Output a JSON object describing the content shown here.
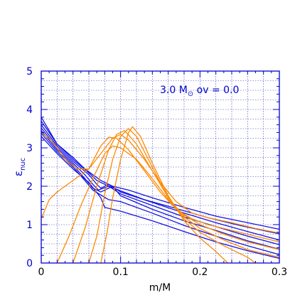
{
  "chart_data": {
    "type": "line",
    "annotation": "3.0 M⊙ ov = 0.0",
    "xlabel": "m/M",
    "ylabel": "εnuc",
    "xlim": [
      0,
      0.3
    ],
    "ylim": [
      0,
      5
    ],
    "grid": true,
    "xticks": [
      "0",
      "0.1",
      "0.2",
      "0.3"
    ],
    "yticks": [
      "0",
      "1",
      "2",
      "3",
      "4",
      "5"
    ],
    "colors": {
      "axes": "#0000cc",
      "grid": "#3333cc",
      "blue": "#1515e0",
      "orange": "#ff8a00"
    },
    "series": [
      {
        "color": "blue",
        "points": [
          [
            0,
            3.8
          ],
          [
            0.02,
            3.1
          ],
          [
            0.04,
            2.75
          ],
          [
            0.055,
            2.45
          ],
          [
            0.065,
            2.3
          ],
          [
            0.075,
            2.15
          ],
          [
            0.09,
            2.0
          ],
          [
            0.11,
            1.9
          ],
          [
            0.14,
            1.7
          ],
          [
            0.18,
            1.45
          ],
          [
            0.22,
            1.22
          ],
          [
            0.26,
            1.05
          ],
          [
            0.3,
            0.88
          ]
        ]
      },
      {
        "color": "blue",
        "points": [
          [
            0,
            3.7
          ],
          [
            0.02,
            3.1
          ],
          [
            0.04,
            2.7
          ],
          [
            0.06,
            2.35
          ],
          [
            0.07,
            2.15
          ],
          [
            0.08,
            2.05
          ],
          [
            0.1,
            1.88
          ],
          [
            0.13,
            1.65
          ],
          [
            0.17,
            1.42
          ],
          [
            0.21,
            1.18
          ],
          [
            0.25,
            0.98
          ],
          [
            0.3,
            0.76
          ]
        ]
      },
      {
        "color": "blue",
        "points": [
          [
            0,
            3.6
          ],
          [
            0.02,
            3.05
          ],
          [
            0.04,
            2.65
          ],
          [
            0.06,
            2.3
          ],
          [
            0.07,
            2.05
          ],
          [
            0.075,
            1.95
          ],
          [
            0.085,
            2.05
          ],
          [
            0.1,
            1.85
          ],
          [
            0.14,
            1.58
          ],
          [
            0.18,
            1.3
          ],
          [
            0.22,
            1.05
          ],
          [
            0.26,
            0.82
          ],
          [
            0.3,
            0.6
          ]
        ]
      },
      {
        "color": "blue",
        "points": [
          [
            0,
            3.52
          ],
          [
            0.02,
            3.0
          ],
          [
            0.04,
            2.6
          ],
          [
            0.055,
            2.3
          ],
          [
            0.065,
            2.05
          ],
          [
            0.072,
            1.9
          ],
          [
            0.085,
            2.0
          ],
          [
            0.1,
            1.8
          ],
          [
            0.14,
            1.5
          ],
          [
            0.18,
            1.2
          ],
          [
            0.22,
            0.95
          ],
          [
            0.26,
            0.7
          ],
          [
            0.3,
            0.48
          ]
        ]
      },
      {
        "color": "blue",
        "points": [
          [
            0,
            3.45
          ],
          [
            0.02,
            2.95
          ],
          [
            0.04,
            2.55
          ],
          [
            0.055,
            2.2
          ],
          [
            0.065,
            1.95
          ],
          [
            0.075,
            1.85
          ],
          [
            0.09,
            2.0
          ],
          [
            0.1,
            1.75
          ],
          [
            0.14,
            1.4
          ],
          [
            0.18,
            1.1
          ],
          [
            0.22,
            0.85
          ],
          [
            0.26,
            0.58
          ],
          [
            0.3,
            0.36
          ]
        ]
      },
      {
        "color": "blue",
        "points": [
          [
            0,
            3.38
          ],
          [
            0.02,
            2.9
          ],
          [
            0.04,
            2.5
          ],
          [
            0.055,
            2.15
          ],
          [
            0.065,
            1.9
          ],
          [
            0.085,
            1.65
          ],
          [
            0.1,
            1.6
          ],
          [
            0.14,
            1.3
          ],
          [
            0.18,
            0.98
          ],
          [
            0.22,
            0.7
          ],
          [
            0.26,
            0.45
          ],
          [
            0.3,
            0.22
          ]
        ]
      },
      {
        "color": "blue",
        "points": [
          [
            0,
            3.3
          ],
          [
            0.02,
            2.85
          ],
          [
            0.04,
            2.45
          ],
          [
            0.06,
            2.1
          ],
          [
            0.075,
            1.7
          ],
          [
            0.08,
            1.45
          ],
          [
            0.1,
            1.35
          ],
          [
            0.14,
            1.1
          ],
          [
            0.18,
            0.82
          ],
          [
            0.22,
            0.55
          ],
          [
            0.26,
            0.32
          ],
          [
            0.3,
            0.12
          ]
        ]
      },
      {
        "color": "orange",
        "points": [
          [
            0,
            3.4
          ],
          [
            0.015,
            3.15
          ],
          [
            0.03,
            2.7
          ],
          [
            0.045,
            2.45
          ],
          [
            0.06,
            2.45
          ],
          [
            0.075,
            2.85
          ],
          [
            0.09,
            3.25
          ],
          [
            0.1,
            3.35
          ],
          [
            0.11,
            3.2
          ],
          [
            0.13,
            2.7
          ],
          [
            0.15,
            2.1
          ],
          [
            0.17,
            1.6
          ],
          [
            0.19,
            1.3
          ],
          [
            0.21,
            1.18
          ],
          [
            0.24,
            1.05
          ],
          [
            0.27,
            0.9
          ],
          [
            0.3,
            0.78
          ]
        ]
      },
      {
        "color": "orange",
        "points": [
          [
            0,
            1.15
          ],
          [
            0.01,
            1.65
          ],
          [
            0.02,
            1.85
          ],
          [
            0.04,
            2.15
          ],
          [
            0.06,
            2.45
          ],
          [
            0.075,
            3.05
          ],
          [
            0.085,
            3.28
          ],
          [
            0.095,
            3.25
          ],
          [
            0.11,
            2.95
          ],
          [
            0.13,
            2.4
          ],
          [
            0.15,
            1.85
          ],
          [
            0.17,
            1.4
          ],
          [
            0.19,
            1.15
          ],
          [
            0.21,
            1.0
          ],
          [
            0.24,
            0.85
          ],
          [
            0.27,
            0.7
          ],
          [
            0.3,
            0.55
          ]
        ]
      },
      {
        "color": "orange",
        "points": [
          [
            0.02,
            0
          ],
          [
            0.035,
            0.7
          ],
          [
            0.05,
            1.5
          ],
          [
            0.065,
            2.2
          ],
          [
            0.08,
            2.85
          ],
          [
            0.09,
            3.05
          ],
          [
            0.1,
            3.0
          ],
          [
            0.12,
            2.7
          ],
          [
            0.14,
            2.2
          ],
          [
            0.16,
            1.65
          ],
          [
            0.18,
            1.25
          ],
          [
            0.2,
            1.0
          ],
          [
            0.23,
            0.75
          ],
          [
            0.26,
            0.55
          ],
          [
            0.3,
            0.35
          ]
        ]
      },
      {
        "color": "orange",
        "points": [
          [
            0.04,
            0
          ],
          [
            0.055,
            0.9
          ],
          [
            0.07,
            2.0
          ],
          [
            0.085,
            2.95
          ],
          [
            0.095,
            3.35
          ],
          [
            0.105,
            3.45
          ],
          [
            0.12,
            3.1
          ],
          [
            0.14,
            2.4
          ],
          [
            0.16,
            1.7
          ],
          [
            0.18,
            1.2
          ],
          [
            0.2,
            0.9
          ],
          [
            0.23,
            0.6
          ],
          [
            0.26,
            0.35
          ],
          [
            0.3,
            0.15
          ]
        ]
      },
      {
        "color": "orange",
        "points": [
          [
            0.06,
            0
          ],
          [
            0.07,
            0.7
          ],
          [
            0.08,
            1.8
          ],
          [
            0.09,
            2.7
          ],
          [
            0.1,
            3.3
          ],
          [
            0.11,
            3.5
          ],
          [
            0.12,
            3.3
          ],
          [
            0.14,
            2.5
          ],
          [
            0.16,
            1.7
          ],
          [
            0.18,
            1.15
          ],
          [
            0.2,
            0.8
          ],
          [
            0.23,
            0.45
          ],
          [
            0.26,
            0.15
          ],
          [
            0.27,
            0
          ]
        ]
      },
      {
        "color": "orange",
        "points": [
          [
            0.075,
            0
          ],
          [
            0.083,
            0.8
          ],
          [
            0.09,
            1.7
          ],
          [
            0.1,
            2.7
          ],
          [
            0.11,
            3.4
          ],
          [
            0.115,
            3.55
          ],
          [
            0.125,
            3.3
          ],
          [
            0.14,
            2.6
          ],
          [
            0.16,
            1.75
          ],
          [
            0.18,
            1.1
          ],
          [
            0.2,
            0.65
          ],
          [
            0.22,
            0.3
          ],
          [
            0.235,
            0
          ]
        ]
      }
    ]
  }
}
